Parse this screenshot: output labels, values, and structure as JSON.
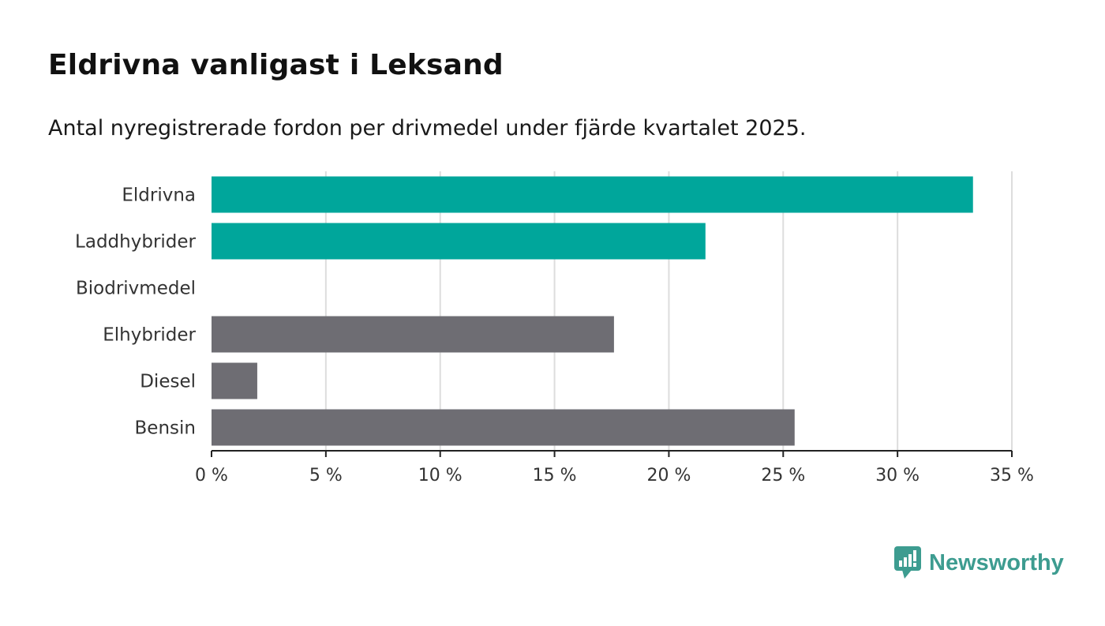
{
  "chart_data": {
    "type": "bar",
    "orientation": "horizontal",
    "title": "Eldrivna vanligast i Leksand",
    "subtitle": "Antal nyregistrerade fordon per drivmedel under fjärde kvartalet 2025.",
    "categories": [
      "Eldrivna",
      "Laddhybrider",
      "Biodrivmedel",
      "Elhybrider",
      "Diesel",
      "Bensin"
    ],
    "values": [
      33.3,
      21.6,
      0,
      17.6,
      2.0,
      25.5
    ],
    "bar_colors": [
      "#00a69b",
      "#00a69b",
      "#00a69b",
      "#6e6d73",
      "#6e6d73",
      "#6e6d73"
    ],
    "xlim": [
      0,
      35
    ],
    "x_ticks": [
      0,
      5,
      10,
      15,
      20,
      25,
      30,
      35
    ],
    "x_tick_labels": [
      "0 %",
      "5 %",
      "10 %",
      "15 %",
      "20 %",
      "25 %",
      "30 %",
      "35 %"
    ],
    "xlabel": "",
    "ylabel": "",
    "grid": true
  },
  "branding": {
    "name": "Newsworthy",
    "color": "#3d9c90"
  }
}
